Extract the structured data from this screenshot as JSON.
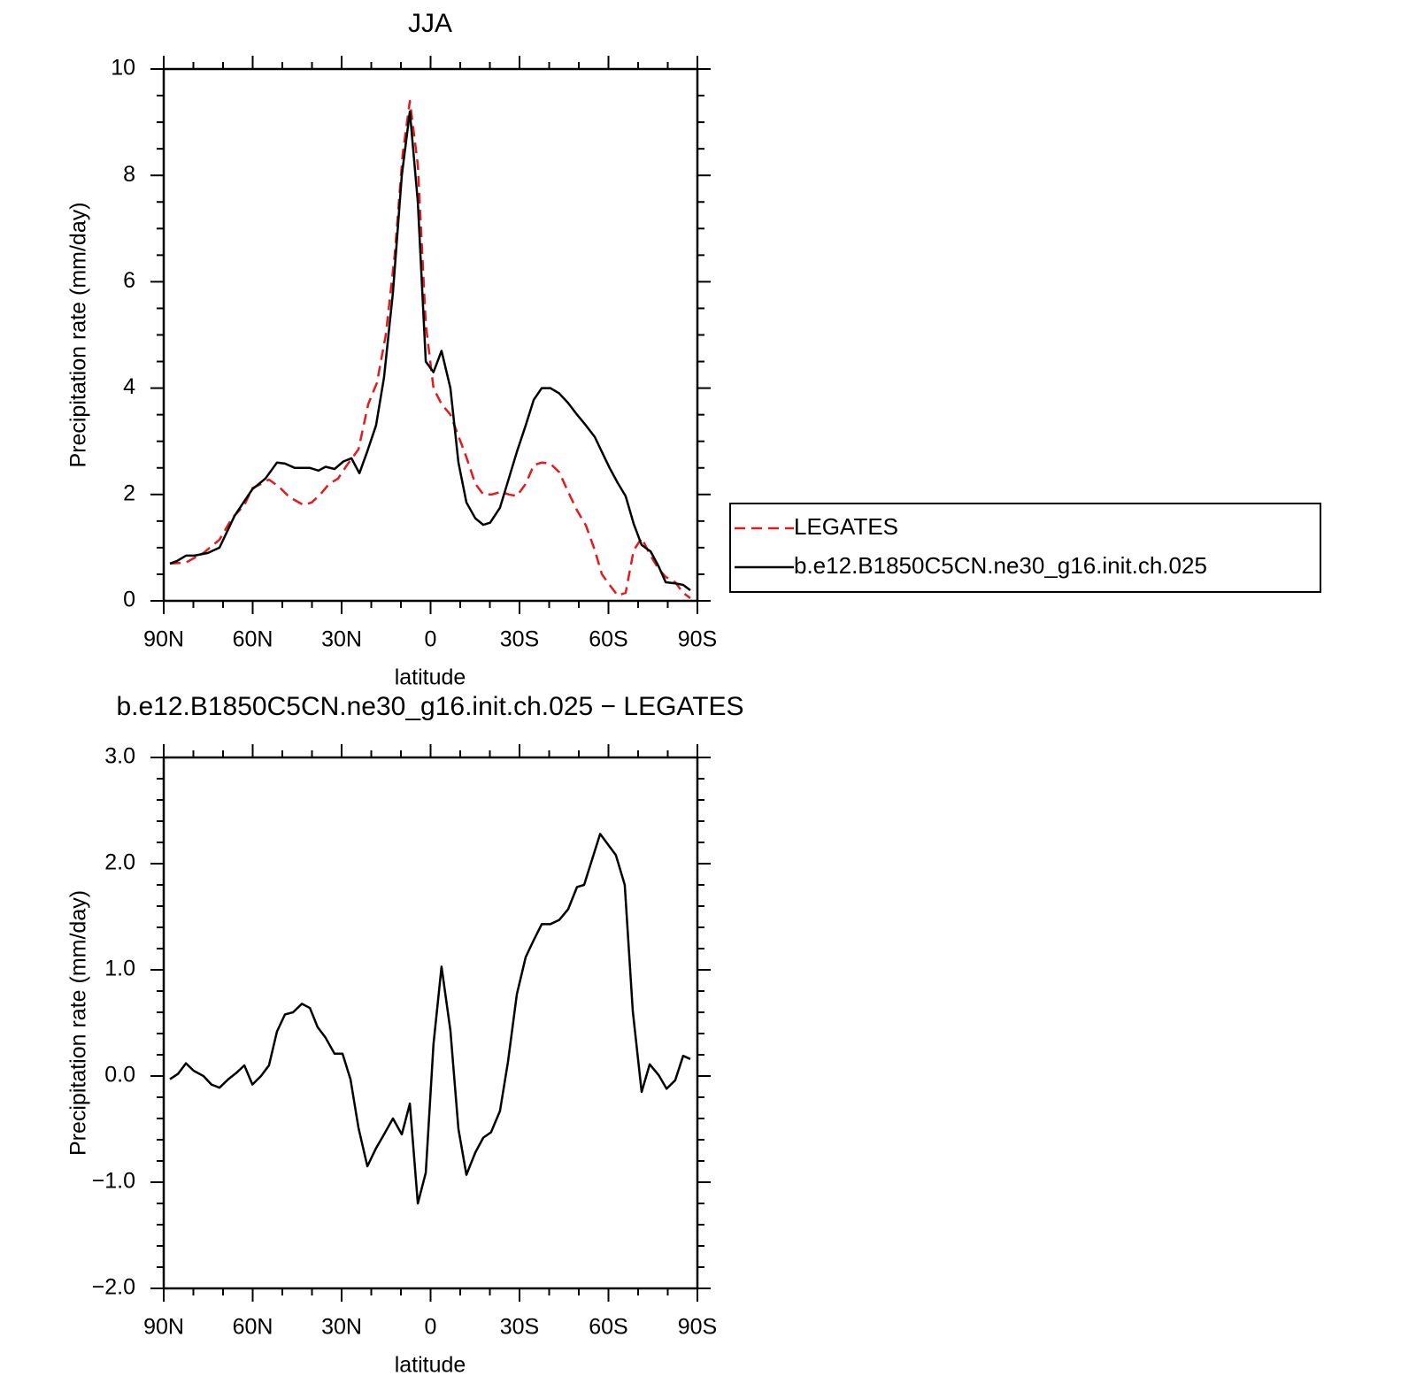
{
  "chart_data": [
    {
      "type": "line",
      "title": "JJA",
      "x_label": "latitude",
      "y_label": "Precipitation rate (mm/day)",
      "xlim": [
        90,
        -90
      ],
      "xticks": [
        {
          "value": 90,
          "label": "90N"
        },
        {
          "value": 60,
          "label": "60N"
        },
        {
          "value": 30,
          "label": "30N"
        },
        0,
        {
          "value": -30,
          "label": "30S"
        },
        {
          "value": -60,
          "label": "60S"
        },
        {
          "value": -90,
          "label": "90S"
        }
      ],
      "xminorticks": [
        80,
        70,
        50,
        40,
        20,
        10,
        -10,
        -20,
        -40,
        -50,
        -70,
        -80
      ],
      "ylim": [
        0,
        10
      ],
      "yticks": [
        0,
        2,
        4,
        6,
        8,
        10
      ],
      "yminorticks": [
        0.5,
        1,
        1.5,
        2.5,
        3,
        3.5,
        4.5,
        5,
        5.5,
        6.5,
        7,
        7.5,
        8.5,
        9,
        9.5
      ],
      "legend": "right",
      "series": [
        {
          "name": "LEGATES",
          "color": "#e41a1c",
          "style": "dashed",
          "x": [
            87.9,
            82.5,
            76.6,
            71.2,
            67.0,
            62.8,
            60.1,
            57.8,
            54.5,
            51.2,
            47.6,
            42.8,
            40.1,
            37.2,
            34.2,
            31.2,
            28.2,
            24.3,
            21.0,
            18.1,
            15.1,
            12.1,
            9.4,
            7.0,
            4.3,
            1.6,
            -1.0,
            -3.7,
            -6.7,
            -9.4,
            -12.1,
            -15.1,
            -17.8,
            -20.7,
            -23.7,
            -26.4,
            -29.1,
            -32.1,
            -34.8,
            -37.5,
            -40.4,
            -43.4,
            -46.4,
            -49.4,
            -52.4,
            -55.4,
            -57.8,
            -60.4,
            -63.1,
            -65.8,
            -68.5,
            -71.2,
            -74.2,
            -76.9,
            -79.3,
            -82.5,
            -85.2,
            -87.6
          ],
          "values": [
            0.7,
            0.72,
            0.9,
            1.15,
            1.55,
            1.8,
            2.12,
            2.18,
            2.28,
            2.15,
            1.95,
            1.8,
            1.85,
            2.0,
            2.2,
            2.3,
            2.55,
            2.85,
            3.7,
            4.1,
            5.0,
            6.5,
            8.4,
            9.4,
            8.2,
            5.2,
            4.0,
            3.7,
            3.5,
            3.1,
            2.7,
            2.2,
            2.0,
            2.0,
            2.05,
            2.0,
            1.97,
            2.2,
            2.55,
            2.6,
            2.58,
            2.42,
            2.05,
            1.7,
            1.42,
            0.95,
            0.5,
            0.3,
            0.1,
            0.15,
            0.95,
            1.18,
            0.85,
            0.6,
            0.45,
            0.35,
            0.15,
            0.05
          ]
        },
        {
          "name": "b.e12.B1850C5CN.ne30_g16.init.ch.025",
          "color": "#000000",
          "style": "solid",
          "x": [
            87.9,
            85.5,
            82.5,
            79.6,
            75.1,
            71.2,
            66.1,
            60.1,
            55.7,
            51.8,
            49.1,
            45.8,
            40.7,
            37.8,
            35.4,
            32.4,
            29.4,
            26.7,
            24.0,
            21.4,
            18.4,
            15.7,
            12.7,
            9.7,
            7.0,
            4.3,
            1.6,
            -1.0,
            -3.7,
            -6.7,
            -9.4,
            -12.1,
            -15.1,
            -17.8,
            -20.1,
            -23.4,
            -26.4,
            -29.1,
            -32.1,
            -34.8,
            -37.5,
            -40.4,
            -43.4,
            -46.4,
            -49.4,
            -52.4,
            -55.4,
            -57.8,
            -60.4,
            -63.1,
            -65.8,
            -68.5,
            -71.2,
            -74.2,
            -76.9,
            -79.3,
            -82.5,
            -85.2,
            -87.6
          ],
          "values": [
            0.7,
            0.75,
            0.85,
            0.85,
            0.9,
            1.0,
            1.6,
            2.1,
            2.3,
            2.6,
            2.58,
            2.5,
            2.5,
            2.45,
            2.52,
            2.48,
            2.62,
            2.68,
            2.4,
            2.8,
            3.3,
            4.2,
            5.8,
            8.0,
            9.2,
            7.5,
            4.5,
            4.3,
            4.7,
            4.0,
            2.6,
            1.85,
            1.55,
            1.43,
            1.47,
            1.75,
            2.3,
            2.8,
            3.3,
            3.78,
            4.0,
            4.0,
            3.9,
            3.72,
            3.5,
            3.3,
            3.08,
            2.8,
            2.5,
            2.22,
            1.97,
            1.45,
            1.05,
            0.93,
            0.65,
            0.35,
            0.33,
            0.3,
            0.2
          ]
        }
      ]
    },
    {
      "type": "line",
      "title": "b.e12.B1850C5CN.ne30_g16.init.ch.025 − LEGATES",
      "x_label": "latitude",
      "y_label": "Precipitation rate (mm/day)",
      "xlim": [
        90,
        -90
      ],
      "xticks": [
        {
          "value": 90,
          "label": "90N"
        },
        {
          "value": 60,
          "label": "60N"
        },
        {
          "value": 30,
          "label": "30N"
        },
        0,
        {
          "value": -30,
          "label": "30S"
        },
        {
          "value": -60,
          "label": "60S"
        },
        {
          "value": -90,
          "label": "90S"
        }
      ],
      "xminorticks": [
        80,
        70,
        50,
        40,
        20,
        10,
        -10,
        -20,
        -40,
        -50,
        -70,
        -80
      ],
      "ylim": [
        -2,
        3
      ],
      "yticks": [
        {
          "value": -2,
          "label": "−2.0"
        },
        {
          "value": -1,
          "label": "−1.0"
        },
        {
          "value": 0,
          "label": "0.0"
        },
        {
          "value": 1,
          "label": "1.0"
        },
        {
          "value": 2,
          "label": "2.0"
        },
        {
          "value": 3,
          "label": "3.0"
        }
      ],
      "yminorticks": [
        -1.8,
        -1.6,
        -1.4,
        -1.2,
        -0.8,
        -0.6,
        -0.4,
        -0.2,
        0.2,
        0.4,
        0.6,
        0.8,
        1.2,
        1.4,
        1.6,
        1.8,
        2.2,
        2.4,
        2.6,
        2.8
      ],
      "series": [
        {
          "color": "#000000",
          "style": "solid",
          "x": [
            87.9,
            85.2,
            82.5,
            79.9,
            76.6,
            73.9,
            71.2,
            68.2,
            65.5,
            62.8,
            60.1,
            57.2,
            54.5,
            51.8,
            49.1,
            46.4,
            43.4,
            40.7,
            38.1,
            35.4,
            32.4,
            29.7,
            27.0,
            24.3,
            21.3,
            18.4,
            15.7,
            12.7,
            9.7,
            7.0,
            4.3,
            1.6,
            -1.0,
            -3.7,
            -6.7,
            -9.4,
            -12.1,
            -15.1,
            -17.8,
            -20.4,
            -23.4,
            -26.1,
            -29.1,
            -32.1,
            -34.8,
            -37.5,
            -40.4,
            -43.4,
            -46.4,
            -49.4,
            -51.8,
            -57.2,
            -62.5,
            -65.5,
            -68.2,
            -71.2,
            -73.9,
            -76.9,
            -79.6,
            -82.5,
            -85.2,
            -87.6
          ],
          "values": [
            -0.03,
            0.02,
            0.12,
            0.05,
            0.0,
            -0.08,
            -0.11,
            -0.03,
            0.03,
            0.1,
            -0.08,
            0.0,
            0.1,
            0.42,
            0.58,
            0.6,
            0.68,
            0.64,
            0.46,
            0.36,
            0.21,
            0.21,
            -0.03,
            -0.49,
            -0.85,
            -0.68,
            -0.55,
            -0.4,
            -0.55,
            -0.26,
            -1.2,
            -0.91,
            0.3,
            1.03,
            0.43,
            -0.5,
            -0.93,
            -0.72,
            -0.58,
            -0.53,
            -0.33,
            0.13,
            0.77,
            1.12,
            1.28,
            1.43,
            1.43,
            1.47,
            1.57,
            1.78,
            1.8,
            2.28,
            2.08,
            1.8,
            0.61,
            -0.15,
            0.11,
            0.01,
            -0.12,
            -0.04,
            0.19,
            0.16
          ]
        }
      ]
    }
  ]
}
